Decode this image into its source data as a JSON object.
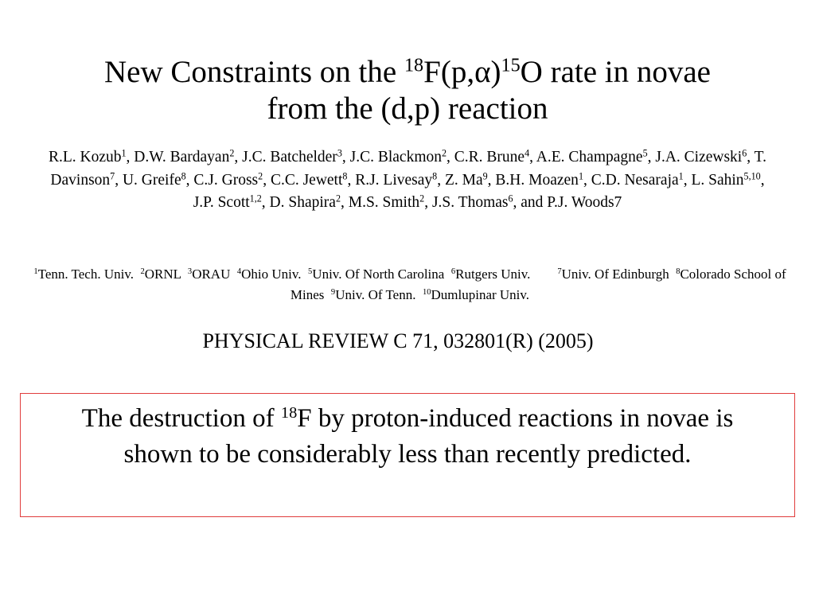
{
  "title": {
    "runs": [
      {
        "text": "New Constraints on the "
      },
      {
        "sup": "18"
      },
      {
        "text": "F(p,α)"
      },
      {
        "sup": "15"
      },
      {
        "text": "O rate in novae from the (d,p) reaction"
      }
    ]
  },
  "authors": {
    "runs": [
      {
        "text": "R.L. Kozub"
      },
      {
        "sup": "1"
      },
      {
        "text": ", D.W. Bardayan"
      },
      {
        "sup": "2"
      },
      {
        "text": ", J.C. Batchelder"
      },
      {
        "sup": "3"
      },
      {
        "text": ", J.C. Blackmon"
      },
      {
        "sup": "2"
      },
      {
        "text": ", C.R. Brune"
      },
      {
        "sup": "4"
      },
      {
        "text": ", A.E. Champagne"
      },
      {
        "sup": "5"
      },
      {
        "text": ", J.A. Cizewski"
      },
      {
        "sup": "6"
      },
      {
        "text": ", T. Davinson"
      },
      {
        "sup": "7"
      },
      {
        "text": ", U. Greife"
      },
      {
        "sup": "8"
      },
      {
        "text": ", C.J. Gross"
      },
      {
        "sup": "2"
      },
      {
        "text": ", C.C. Jewett"
      },
      {
        "sup": "8"
      },
      {
        "text": ", R.J. Livesay"
      },
      {
        "sup": "8"
      },
      {
        "text": ", Z. Ma"
      },
      {
        "sup": "9"
      },
      {
        "text": ", B.H. Moazen"
      },
      {
        "sup": "1"
      },
      {
        "text": ", C.D. Nesaraja"
      },
      {
        "sup": "1"
      },
      {
        "text": ", L. Sahin"
      },
      {
        "sup": "5,10"
      },
      {
        "text": ", J.P. Scott"
      },
      {
        "sup": "1,2"
      },
      {
        "text": ", D. Shapira"
      },
      {
        "sup": "2"
      },
      {
        "text": ", M.S. Smith"
      },
      {
        "sup": "2"
      },
      {
        "text": ", J.S. Thomas"
      },
      {
        "sup": "6"
      },
      {
        "text": ", and P.J. Woods7"
      }
    ]
  },
  "affiliations": {
    "runs": [
      {
        "sup": "1"
      },
      {
        "text": "Tenn. Tech. Univ.  "
      },
      {
        "sup": "2"
      },
      {
        "text": "ORNL  "
      },
      {
        "sup": "3"
      },
      {
        "text": "ORAU  "
      },
      {
        "sup": "4"
      },
      {
        "text": "Ohio Univ.  "
      },
      {
        "sup": "5"
      },
      {
        "text": "Univ. Of North Carolina  "
      },
      {
        "sup": "6"
      },
      {
        "text": "Rutgers Univ.        "
      },
      {
        "sup": "7"
      },
      {
        "text": "Univ. Of Edinburgh  "
      },
      {
        "sup": "8"
      },
      {
        "text": "Colorado School of Mines  "
      },
      {
        "sup": "9"
      },
      {
        "text": "Univ. Of Tenn.  "
      },
      {
        "sup": "10"
      },
      {
        "text": "Dumlupinar Univ."
      }
    ]
  },
  "reference": {
    "runs": [
      {
        "text": "PHYSICAL REVIEW C 71, 032801(R) (2005)"
      }
    ]
  },
  "summary": {
    "runs": [
      {
        "text": "The destruction of "
      },
      {
        "sup": "18"
      },
      {
        "text": "F by proton-induced reactions in novae is shown to be considerably less than recently predicted."
      }
    ]
  }
}
